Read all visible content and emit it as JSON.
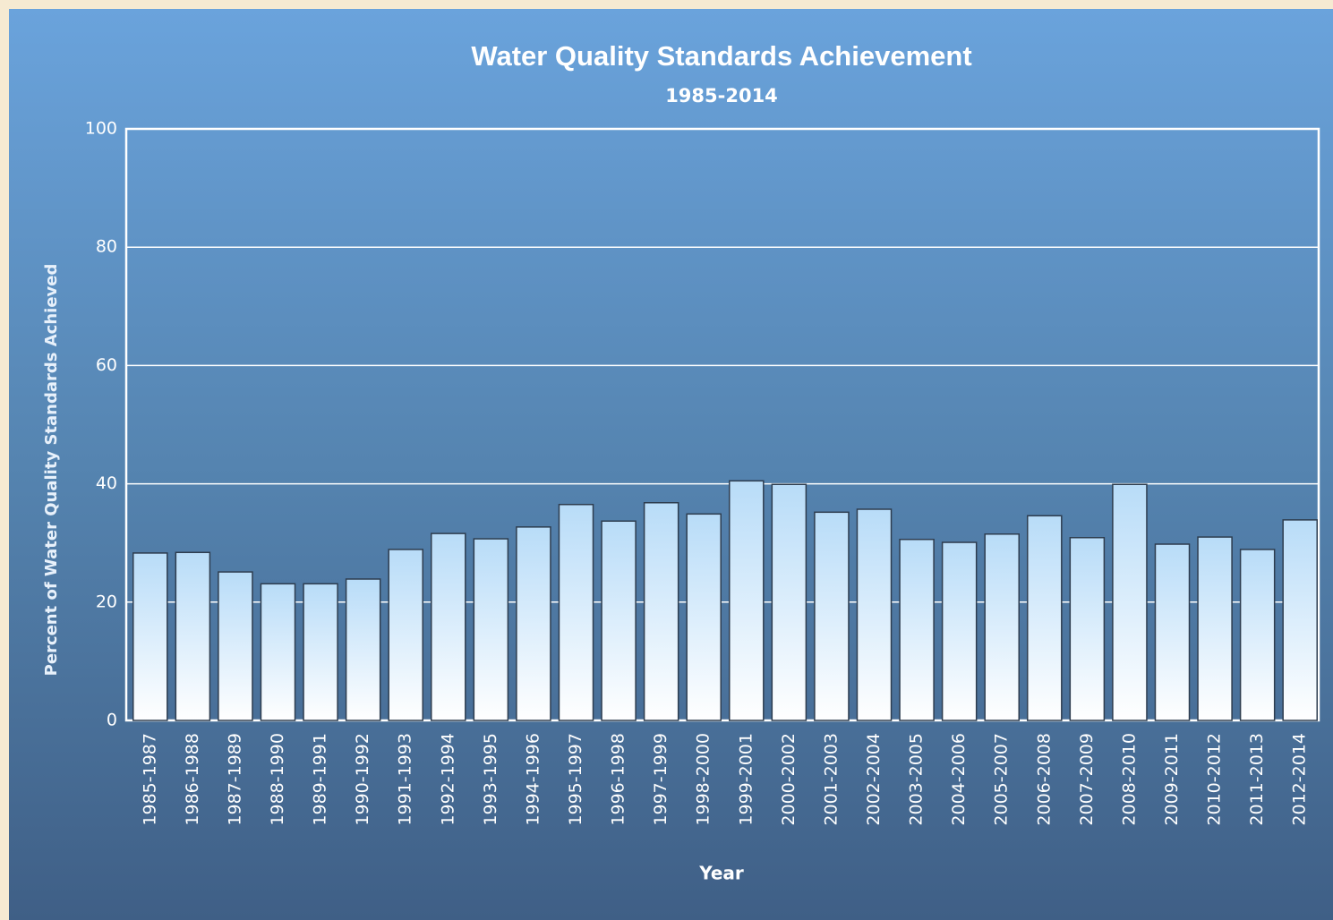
{
  "chart_data": {
    "type": "bar",
    "title": "Water Quality Standards Achievement",
    "subtitle": "1985-2014",
    "x_label": "Year",
    "y_label": "Percent of Water Quality Standards Achieved",
    "categories": [
      "1985-1987",
      "1986-1988",
      "1987-1989",
      "1988-1990",
      "1989-1991",
      "1990-1992",
      "1991-1993",
      "1992-1994",
      "1993-1995",
      "1994-1996",
      "1995-1997",
      "1996-1998",
      "1997-1999",
      "1998-2000",
      "1999-2001",
      "2000-2002",
      "2001-2003",
      "2002-2004",
      "2003-2005",
      "2004-2006",
      "2005-2007",
      "2006-2008",
      "2007-2009",
      "2008-2010",
      "2009-2011",
      "2010-2012",
      "2011-2013",
      "2012-2014"
    ],
    "values": [
      28.3,
      28.4,
      25.1,
      23.1,
      23.1,
      23.9,
      28.9,
      31.6,
      30.7,
      32.7,
      36.5,
      33.7,
      36.8,
      34.9,
      40.5,
      39.9,
      35.2,
      35.7,
      30.6,
      30.1,
      31.5,
      34.6,
      30.9,
      39.9,
      29.8,
      31.0,
      28.9,
      33.9
    ],
    "color": "#b8dcf8",
    "ylim": [
      0,
      100
    ],
    "yticks": [
      0,
      20,
      40,
      60,
      80,
      100
    ],
    "grid": true
  }
}
